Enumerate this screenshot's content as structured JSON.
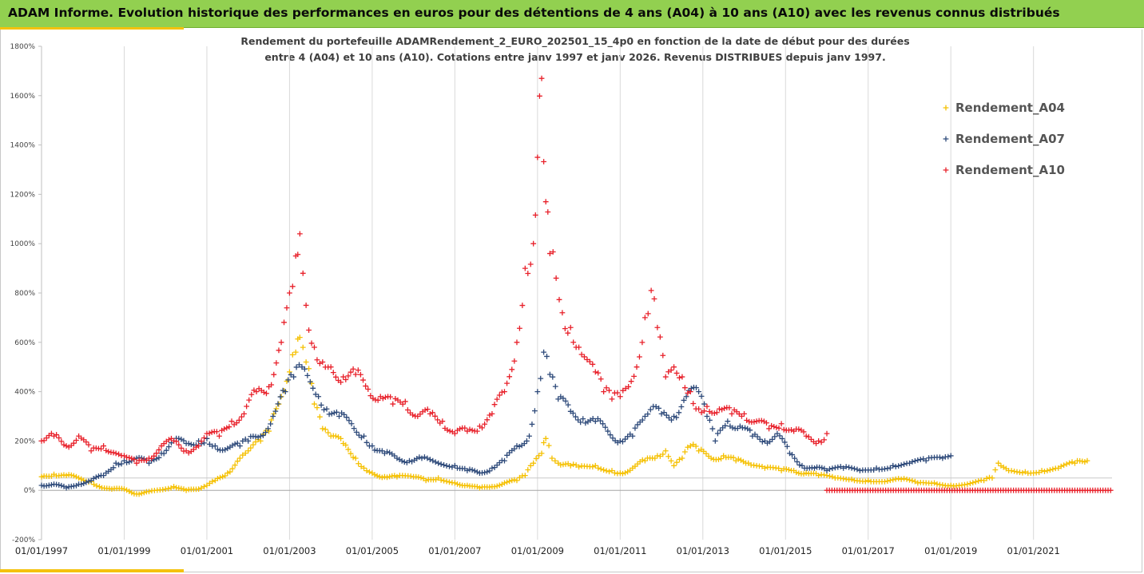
{
  "header": {
    "title": "ADAM Informe. Evolution historique des performances en euros pour des détentions de 4 ans (A04) à 10 ans (A10) avec les revenus connus distribués"
  },
  "chart_data": {
    "type": "scatter",
    "title": "",
    "subtitle_lines": [
      "Rendement du portefeuille ADAMRendement_2_EURO_202501_15_4p0  en fonction de la date de début pour des durées",
      "entre 4 (A04) et 10 ans (A10). Cotations entre janv 1997 et janv 2026. Revenus DISTRIBUES depuis janv 1997."
    ],
    "xlabel": "",
    "ylabel": "",
    "xlim": [
      1997.0,
      2022.9
    ],
    "ylim": [
      -200,
      1800
    ],
    "y_ticks": [
      -200,
      0,
      200,
      400,
      600,
      800,
      1000,
      1200,
      1400,
      1600,
      1800
    ],
    "y_tick_labels": [
      "-200%",
      "0%",
      "200%",
      "400%",
      "600%",
      "800%",
      "1000%",
      "1200%",
      "1400%",
      "1600%",
      "1800%"
    ],
    "x_ticks": [
      1997,
      1999,
      2001,
      2003,
      2005,
      2007,
      2009,
      2011,
      2013,
      2015,
      2017,
      2019,
      2021
    ],
    "x_tick_labels": [
      "01/01/1997",
      "01/01/1999",
      "01/01/2001",
      "01/01/2003",
      "01/01/2005",
      "01/01/2007",
      "01/01/2009",
      "01/01/2011",
      "01/01/2013",
      "01/01/2015",
      "01/01/2017",
      "01/01/2019",
      "01/01/2021"
    ],
    "grid": "vertical-lines",
    "legend_position": "right",
    "marker": "+",
    "series": [
      {
        "name": "Rendement_A04",
        "color": "#f5c000",
        "points": [
          [
            1997.0,
            55
          ],
          [
            1997.3,
            65
          ],
          [
            1997.6,
            60
          ],
          [
            1997.9,
            50
          ],
          [
            1998.2,
            35
          ],
          [
            1998.4,
            15
          ],
          [
            1998.7,
            5
          ],
          [
            1999.0,
            5
          ],
          [
            1999.3,
            -15
          ],
          [
            1999.6,
            -5
          ],
          [
            2000.0,
            5
          ],
          [
            2000.2,
            15
          ],
          [
            2000.5,
            0
          ],
          [
            2000.8,
            5
          ],
          [
            2001.0,
            20
          ],
          [
            2001.2,
            40
          ],
          [
            2001.5,
            70
          ],
          [
            2001.8,
            130
          ],
          [
            2002.0,
            160
          ],
          [
            2002.3,
            200
          ],
          [
            2002.5,
            240
          ],
          [
            2002.8,
            380
          ],
          [
            2003.0,
            480
          ],
          [
            2003.15,
            560
          ],
          [
            2003.25,
            620
          ],
          [
            2003.4,
            520
          ],
          [
            2003.6,
            350
          ],
          [
            2003.8,
            250
          ],
          [
            2004.0,
            220
          ],
          [
            2004.3,
            190
          ],
          [
            2004.6,
            130
          ],
          [
            2004.8,
            90
          ],
          [
            2005.0,
            70
          ],
          [
            2005.3,
            55
          ],
          [
            2005.6,
            55
          ],
          [
            2006.0,
            55
          ],
          [
            2006.3,
            40
          ],
          [
            2006.6,
            50
          ],
          [
            2007.0,
            30
          ],
          [
            2007.3,
            20
          ],
          [
            2007.6,
            10
          ],
          [
            2007.9,
            15
          ],
          [
            2008.2,
            30
          ],
          [
            2008.5,
            40
          ],
          [
            2008.7,
            60
          ],
          [
            2008.9,
            110
          ],
          [
            2009.1,
            150
          ],
          [
            2009.2,
            210
          ],
          [
            2009.35,
            130
          ],
          [
            2009.5,
            110
          ],
          [
            2009.8,
            100
          ],
          [
            2010.0,
            95
          ],
          [
            2010.4,
            100
          ],
          [
            2010.8,
            80
          ],
          [
            2011.0,
            70
          ],
          [
            2011.3,
            90
          ],
          [
            2011.6,
            120
          ],
          [
            2011.9,
            140
          ],
          [
            2012.1,
            160
          ],
          [
            2012.3,
            100
          ],
          [
            2012.5,
            130
          ],
          [
            2012.7,
            180
          ],
          [
            2012.9,
            160
          ],
          [
            2013.2,
            130
          ],
          [
            2013.5,
            140
          ],
          [
            2013.8,
            120
          ],
          [
            2014.1,
            110
          ],
          [
            2014.5,
            90
          ],
          [
            2014.9,
            80
          ],
          [
            2015.2,
            80
          ],
          [
            2015.5,
            70
          ],
          [
            2015.8,
            60
          ],
          [
            2016.2,
            50
          ],
          [
            2016.6,
            45
          ],
          [
            2017.0,
            40
          ],
          [
            2017.4,
            35
          ],
          [
            2017.8,
            45
          ],
          [
            2018.2,
            30
          ],
          [
            2018.6,
            30
          ],
          [
            2019.0,
            20
          ],
          [
            2019.4,
            25
          ],
          [
            2019.8,
            40
          ],
          [
            2020.0,
            50
          ],
          [
            2020.15,
            110
          ],
          [
            2020.4,
            80
          ],
          [
            2020.8,
            75
          ],
          [
            2021.2,
            80
          ],
          [
            2021.6,
            90
          ],
          [
            2022.0,
            110
          ],
          [
            2022.3,
            120
          ]
        ]
      },
      {
        "name": "Rendement_A07",
        "color": "#2e4a7a",
        "points": [
          [
            1997.0,
            20
          ],
          [
            1997.3,
            25
          ],
          [
            1997.6,
            10
          ],
          [
            1997.9,
            25
          ],
          [
            1998.2,
            40
          ],
          [
            1998.5,
            60
          ],
          [
            1998.8,
            110
          ],
          [
            1999.0,
            120
          ],
          [
            1999.3,
            130
          ],
          [
            1999.6,
            110
          ],
          [
            1999.9,
            150
          ],
          [
            2000.2,
            200
          ],
          [
            2000.5,
            190
          ],
          [
            2000.8,
            200
          ],
          [
            2001.0,
            210
          ],
          [
            2001.2,
            180
          ],
          [
            2001.5,
            170
          ],
          [
            2001.8,
            180
          ],
          [
            2002.0,
            200
          ],
          [
            2002.3,
            220
          ],
          [
            2002.6,
            300
          ],
          [
            2002.9,
            400
          ],
          [
            2003.1,
            460
          ],
          [
            2003.3,
            500
          ],
          [
            2003.5,
            440
          ],
          [
            2003.7,
            380
          ],
          [
            2003.9,
            330
          ],
          [
            2004.2,
            300
          ],
          [
            2004.5,
            270
          ],
          [
            2004.8,
            220
          ],
          [
            2005.0,
            180
          ],
          [
            2005.3,
            150
          ],
          [
            2005.6,
            130
          ],
          [
            2005.9,
            120
          ],
          [
            2006.2,
            130
          ],
          [
            2006.6,
            110
          ],
          [
            2007.0,
            100
          ],
          [
            2007.3,
            80
          ],
          [
            2007.6,
            70
          ],
          [
            2007.9,
            90
          ],
          [
            2008.2,
            120
          ],
          [
            2008.5,
            180
          ],
          [
            2008.8,
            220
          ],
          [
            2009.0,
            400
          ],
          [
            2009.15,
            560
          ],
          [
            2009.3,
            470
          ],
          [
            2009.5,
            370
          ],
          [
            2009.8,
            320
          ],
          [
            2010.1,
            290
          ],
          [
            2010.4,
            280
          ],
          [
            2010.7,
            240
          ],
          [
            2011.0,
            200
          ],
          [
            2011.3,
            220
          ],
          [
            2011.6,
            300
          ],
          [
            2011.8,
            340
          ],
          [
            2012.0,
            310
          ],
          [
            2012.3,
            300
          ],
          [
            2012.6,
            380
          ],
          [
            2012.9,
            400
          ],
          [
            2013.1,
            300
          ],
          [
            2013.3,
            200
          ],
          [
            2013.6,
            280
          ],
          [
            2013.9,
            260
          ],
          [
            2014.2,
            220
          ],
          [
            2014.5,
            200
          ],
          [
            2014.8,
            230
          ],
          [
            2015.1,
            150
          ],
          [
            2015.4,
            100
          ],
          [
            2015.7,
            90
          ],
          [
            2016.0,
            80
          ],
          [
            2016.4,
            90
          ],
          [
            2016.8,
            80
          ],
          [
            2017.2,
            90
          ],
          [
            2017.6,
            100
          ],
          [
            2018.0,
            110
          ],
          [
            2018.4,
            120
          ],
          [
            2018.8,
            130
          ],
          [
            2019.0,
            140
          ]
        ]
      },
      {
        "name": "Rendement_A10",
        "color": "#e8202a",
        "points": [
          [
            1997.0,
            200
          ],
          [
            1997.3,
            220
          ],
          [
            1997.6,
            180
          ],
          [
            1997.9,
            220
          ],
          [
            1998.2,
            160
          ],
          [
            1998.5,
            180
          ],
          [
            1998.8,
            150
          ],
          [
            1999.0,
            140
          ],
          [
            1999.3,
            110
          ],
          [
            1999.6,
            130
          ],
          [
            1999.9,
            180
          ],
          [
            2000.2,
            200
          ],
          [
            2000.5,
            160
          ],
          [
            2000.8,
            180
          ],
          [
            2001.0,
            230
          ],
          [
            2001.3,
            220
          ],
          [
            2001.6,
            280
          ],
          [
            2001.9,
            310
          ],
          [
            2002.2,
            400
          ],
          [
            2002.5,
            420
          ],
          [
            2002.8,
            600
          ],
          [
            2003.0,
            800
          ],
          [
            2003.15,
            950
          ],
          [
            2003.25,
            1040
          ],
          [
            2003.4,
            750
          ],
          [
            2003.6,
            580
          ],
          [
            2003.8,
            520
          ],
          [
            2004.0,
            500
          ],
          [
            2004.3,
            460
          ],
          [
            2004.6,
            470
          ],
          [
            2004.9,
            410
          ],
          [
            2005.2,
            380
          ],
          [
            2005.5,
            350
          ],
          [
            2005.8,
            360
          ],
          [
            2006.1,
            300
          ],
          [
            2006.4,
            310
          ],
          [
            2006.7,
            280
          ],
          [
            2007.0,
            230
          ],
          [
            2007.3,
            240
          ],
          [
            2007.6,
            260
          ],
          [
            2007.9,
            310
          ],
          [
            2008.2,
            400
          ],
          [
            2008.5,
            600
          ],
          [
            2008.7,
            900
          ],
          [
            2008.9,
            1000
          ],
          [
            2009.0,
            1350
          ],
          [
            2009.1,
            1670
          ],
          [
            2009.2,
            1170
          ],
          [
            2009.3,
            960
          ],
          [
            2009.45,
            860
          ],
          [
            2009.6,
            720
          ],
          [
            2009.8,
            660
          ],
          [
            2010.0,
            580
          ],
          [
            2010.2,
            530
          ],
          [
            2010.4,
            480
          ],
          [
            2010.6,
            400
          ],
          [
            2010.8,
            370
          ],
          [
            2011.0,
            380
          ],
          [
            2011.2,
            420
          ],
          [
            2011.4,
            500
          ],
          [
            2011.6,
            700
          ],
          [
            2011.75,
            810
          ],
          [
            2011.9,
            660
          ],
          [
            2012.1,
            460
          ],
          [
            2012.3,
            500
          ],
          [
            2012.5,
            460
          ],
          [
            2012.7,
            400
          ],
          [
            2012.9,
            330
          ],
          [
            2013.1,
            340
          ],
          [
            2013.4,
            330
          ],
          [
            2013.7,
            310
          ],
          [
            2014.0,
            310
          ],
          [
            2014.3,
            280
          ],
          [
            2014.6,
            250
          ],
          [
            2014.9,
            270
          ],
          [
            2015.2,
            240
          ],
          [
            2015.5,
            220
          ],
          [
            2015.8,
            200
          ],
          [
            2016.0,
            230
          ]
        ]
      }
    ],
    "flat_segment": {
      "series": "Rendement_A10",
      "x_start": 2016.0,
      "x_end": 2022.9,
      "value": 0
    }
  }
}
